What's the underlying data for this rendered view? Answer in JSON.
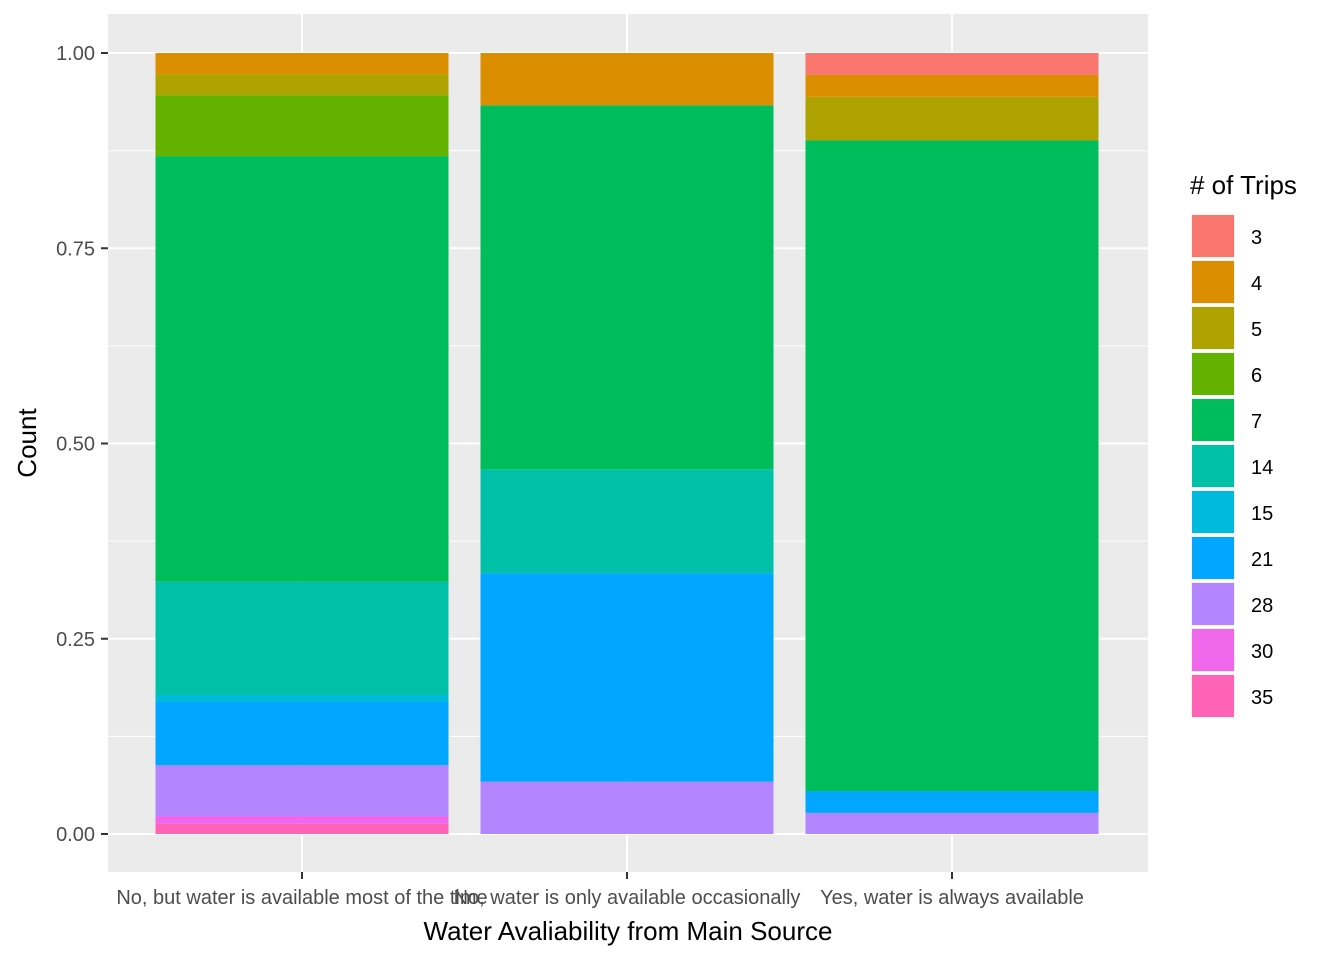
{
  "chart_data": {
    "type": "bar",
    "stacked": true,
    "position": "fill",
    "xlabel": "Water Avaliability from Main Source",
    "ylabel": "Count",
    "ylim": [
      0,
      1
    ],
    "yticks": [
      "0.00",
      "0.25",
      "0.50",
      "0.75",
      "1.00"
    ],
    "grid": true,
    "legend_title": "# of Trips",
    "legend_position": "right",
    "categories": [
      "No, but water is available most of the time",
      "No, water is only available occasionally",
      "Yes, water is always available"
    ],
    "series": [
      {
        "name": "3",
        "color": "#F8766D",
        "values": [
          0,
          0,
          0.028
        ]
      },
      {
        "name": "4",
        "color": "#DB8E00",
        "values": [
          0.027,
          0.067,
          0.028
        ]
      },
      {
        "name": "5",
        "color": "#AEA200",
        "values": [
          0.027,
          0,
          0.056
        ]
      },
      {
        "name": "6",
        "color": "#64B200",
        "values": [
          0.078,
          0,
          0
        ]
      },
      {
        "name": "7",
        "color": "#00BD5C",
        "values": [
          0.545,
          0.466,
          0.833
        ]
      },
      {
        "name": "14",
        "color": "#00C1A7",
        "values": [
          0.145,
          0.133,
          0
        ]
      },
      {
        "name": "15",
        "color": "#00BADE",
        "values": [
          0.009,
          0,
          0
        ]
      },
      {
        "name": "21",
        "color": "#00A6FF",
        "values": [
          0.081,
          0.267,
          0.028
        ]
      },
      {
        "name": "28",
        "color": "#B385FF",
        "values": [
          0.065,
          0.067,
          0.027
        ]
      },
      {
        "name": "30",
        "color": "#EF67EB",
        "values": [
          0.01,
          0,
          0
        ]
      },
      {
        "name": "35",
        "color": "#FF63B6",
        "values": [
          0.013,
          0,
          0
        ]
      }
    ]
  }
}
